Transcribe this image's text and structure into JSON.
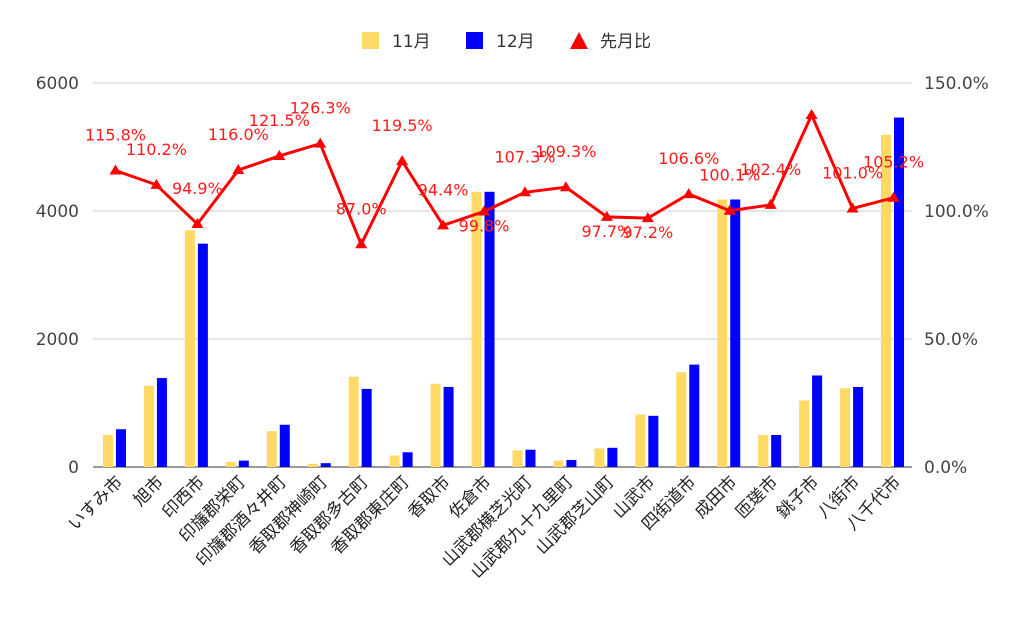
{
  "chart_data": {
    "type": "bar",
    "categories": [
      "いすみ市",
      "旭市",
      "印西市",
      "印旛郡栄町",
      "印旛郡酒々井町",
      "香取郡神崎町",
      "香取郡多古町",
      "香取郡東庄町",
      "香取市",
      "佐倉市",
      "山武郡横芝光町",
      "山武郡九十九里町",
      "山武郡芝山町",
      "山武市",
      "四街道市",
      "成田市",
      "匝瑳市",
      "銚子市",
      "八街市",
      "八千代市"
    ],
    "series": [
      {
        "name": "11月",
        "type": "bar",
        "axis": "left",
        "color": "#ffd966",
        "values": [
          500,
          1270,
          3700,
          80,
          560,
          50,
          1410,
          180,
          1300,
          4300,
          260,
          100,
          290,
          820,
          1480,
          4180,
          500,
          1040,
          1230,
          5190
        ]
      },
      {
        "name": "12月",
        "type": "bar",
        "axis": "left",
        "color": "#0000ff",
        "values": [
          590,
          1390,
          3490,
          100,
          660,
          60,
          1220,
          230,
          1250,
          4300,
          270,
          110,
          300,
          800,
          1600,
          4180,
          500,
          1430,
          1250,
          5460
        ]
      },
      {
        "name": "先月比",
        "type": "line",
        "axis": "right",
        "color": "#ff0000",
        "values": [
          115.8,
          110.2,
          94.9,
          116.0,
          121.5,
          126.3,
          87.0,
          119.5,
          94.4,
          99.8,
          107.3,
          109.3,
          97.7,
          97.2,
          106.6,
          100.1,
          102.4,
          137.5,
          101.0,
          105.2
        ],
        "labels": [
          "115.8%",
          "110.2%",
          "94.9%",
          "116.0%",
          "121.5%",
          "126.3%",
          "87.0%",
          "119.5%",
          "94.4%",
          "99.8%",
          "107.3%",
          "109.3%",
          "97.7%",
          "97.2%",
          "106.6%",
          "100.1%",
          "102.4%",
          "",
          "101.0%",
          "105.2%"
        ]
      }
    ],
    "left_axis": {
      "ylim": [
        0,
        6000
      ],
      "ticks": [
        "0",
        "2000",
        "4000",
        "6000"
      ]
    },
    "right_axis": {
      "ylim": [
        0,
        150
      ],
      "ticks": [
        "0.0%",
        "50.0%",
        "100.0%",
        "150.0%"
      ]
    },
    "legend": {
      "position": "top-center",
      "items": [
        "11月",
        "12月",
        "先月比"
      ]
    },
    "grid": true
  }
}
